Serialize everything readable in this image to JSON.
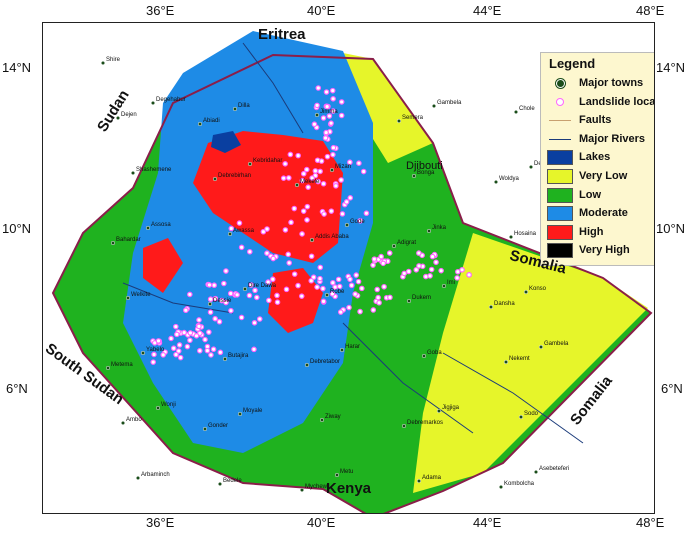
{
  "axes": {
    "top_ticks": [
      "36°E",
      "40°E",
      "44°E",
      "48°E"
    ],
    "bottom_ticks": [
      "36°E",
      "40°E",
      "44°E",
      "48°E"
    ],
    "left_ticks": [
      "14°N",
      "10°N",
      "6°N"
    ],
    "right_ticks": [
      "14°N",
      "10°N",
      "6°N"
    ]
  },
  "countries": [
    "Eritrea",
    "Sudan",
    "Djibouti",
    "Somalia",
    "South Sudan",
    "Kenya",
    "Somalia"
  ],
  "legend": {
    "title": "Legend",
    "items": [
      {
        "label": "Major towns",
        "symbol": "town-dot"
      },
      {
        "label": "Landslide  locations",
        "symbol": "landslide-circle"
      },
      {
        "label": "Faults",
        "symbol": "fault-line"
      },
      {
        "label": "Major Rivers",
        "symbol": "river-line"
      },
      {
        "label": "Lakes",
        "symbol": "swatch",
        "color": "#0a3fa0"
      },
      {
        "label": "Very Low",
        "symbol": "swatch",
        "color": "#e6f52a"
      },
      {
        "label": "Low",
        "symbol": "swatch",
        "color": "#1fb21f"
      },
      {
        "label": "Moderate",
        "symbol": "swatch",
        "color": "#1e8be6"
      },
      {
        "label": "High",
        "symbol": "swatch",
        "color": "#ff1a1a"
      },
      {
        "label": "Very High",
        "symbol": "swatch",
        "color": "#000000"
      }
    ]
  },
  "towns": [
    "Shire",
    "Abiadi",
    "Mekele",
    "Adigrat",
    "Dansha",
    "Metema",
    "Gonder",
    "Mychew",
    "Semera",
    "Woldya",
    "Bahardar",
    "Dessie",
    "Debretabor",
    "Debremarkos",
    "Kombolcha",
    "Dejen",
    "Debrebirhan",
    "Addis Ababa",
    "Dukem",
    "Nekemt",
    "Ambo",
    "Bedele",
    "Jimma",
    "Bonga",
    "Hosaina",
    "Welkite",
    "Butajira",
    "Ziway",
    "Adama",
    "Chole",
    "Shashemene",
    "Awassa",
    "Robe",
    "Goba",
    "Sodo",
    "Arbaminch",
    "Dilla",
    "Mizan",
    "Jinka",
    "Konso",
    "Yabelo",
    "Moyale",
    "Metu",
    "Gambela",
    "Dembidolo",
    "Assosa",
    "Dire Dawa",
    "Harar",
    "Jigjiga",
    "Asebeteferi",
    "Degehabur",
    "Kebridahar",
    "Gode",
    "Imi",
    "Gambela",
    "Wonji"
  ],
  "colors": {
    "very_low": "#e6f52a",
    "low": "#1fb21f",
    "moderate": "#1e8be6",
    "high": "#ff1a1a",
    "very_high": "#000000",
    "lakes": "#0a3fa0",
    "boundary": "#8a1e4a",
    "landslide": "#ff66ff",
    "town": "#1a4d1a"
  },
  "map_regions": {
    "green": [
      [
        230,
        32
      ],
      [
        330,
        36
      ],
      [
        390,
        120
      ],
      [
        420,
        200
      ],
      [
        560,
        255
      ],
      [
        608,
        290
      ],
      [
        460,
        440
      ],
      [
        400,
        468
      ],
      [
        330,
        495
      ],
      [
        280,
        466
      ],
      [
        200,
        460
      ],
      [
        130,
        430
      ],
      [
        40,
        330
      ],
      [
        10,
        270
      ],
      [
        40,
        210
      ],
      [
        90,
        165
      ],
      [
        130,
        80
      ]
    ],
    "yellow_se": [
      [
        430,
        210
      ],
      [
        560,
        255
      ],
      [
        605,
        285
      ],
      [
        500,
        390
      ],
      [
        440,
        450
      ],
      [
        370,
        470
      ],
      [
        380,
        390
      ],
      [
        400,
        310
      ]
    ],
    "yellow_ne": [
      [
        300,
        30
      ],
      [
        330,
        36
      ],
      [
        390,
        120
      ],
      [
        345,
        140
      ],
      [
        320,
        100
      ]
    ],
    "blue": [
      [
        140,
        50
      ],
      [
        210,
        8
      ],
      [
        300,
        28
      ],
      [
        330,
        100
      ],
      [
        330,
        200
      ],
      [
        310,
        270
      ],
      [
        300,
        340
      ],
      [
        260,
        400
      ],
      [
        200,
        430
      ],
      [
        150,
        420
      ],
      [
        110,
        360
      ],
      [
        80,
        300
      ],
      [
        90,
        230
      ],
      [
        115,
        150
      ],
      [
        120,
        80
      ]
    ],
    "red_core": [
      [
        165,
        120
      ],
      [
        200,
        108
      ],
      [
        240,
        112
      ],
      [
        280,
        118
      ],
      [
        300,
        150
      ],
      [
        295,
        220
      ],
      [
        270,
        240
      ],
      [
        230,
        230
      ],
      [
        200,
        210
      ],
      [
        170,
        190
      ],
      [
        150,
        160
      ]
    ],
    "red_south": [
      [
        230,
        250
      ],
      [
        260,
        245
      ],
      [
        280,
        270
      ],
      [
        270,
        300
      ],
      [
        245,
        310
      ],
      [
        225,
        290
      ]
    ],
    "red_west": [
      [
        100,
        225
      ],
      [
        125,
        215
      ],
      [
        140,
        240
      ],
      [
        120,
        270
      ],
      [
        100,
        255
      ]
    ],
    "lake_tana": [
      [
        170,
        112
      ],
      [
        190,
        108
      ],
      [
        198,
        122
      ],
      [
        182,
        130
      ],
      [
        168,
        124
      ]
    ]
  }
}
